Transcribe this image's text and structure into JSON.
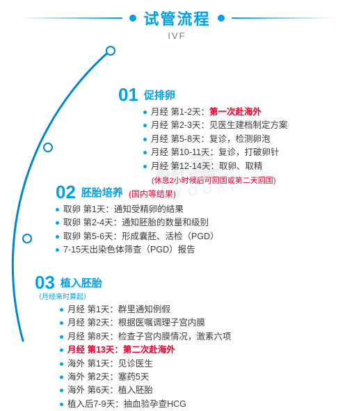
{
  "colors": {
    "accent": "#00a0e9",
    "text": "#3a3a3a",
    "highlight": "#e6002d",
    "muted": "#7a7a7a",
    "arc": "#0086d1",
    "watermark": "#e8e8e8"
  },
  "header": {
    "title": "试管流程",
    "subtitle": "IVF"
  },
  "watermark": {
    "main": "柚喜",
    "sub": "YOUXI"
  },
  "sections": [
    {
      "num": "01",
      "label": "促排卵",
      "note": "",
      "sub": "",
      "tail": "(休息2小时候后可回国或第二天回国)",
      "tail_color": "highlight",
      "items": [
        {
          "parts": [
            {
              "t": "月经 第1-2天：",
              "c": "text"
            },
            {
              "t": "第一次赴海外",
              "c": "highlight"
            }
          ]
        },
        {
          "parts": [
            {
              "t": "月经 第2-3天：见医生建档制定方案",
              "c": "text"
            }
          ]
        },
        {
          "parts": [
            {
              "t": "月经 第5-8天：复诊，检测卵泡",
              "c": "text"
            }
          ]
        },
        {
          "parts": [
            {
              "t": "月经 第10-11天：复诊，打破卵针",
              "c": "text"
            }
          ]
        },
        {
          "parts": [
            {
              "t": "月经 第12-14天：取卵、取精",
              "c": "text"
            }
          ]
        }
      ]
    },
    {
      "num": "02",
      "label": "胚胎培养",
      "note": "(国内等结果)",
      "note_color": "highlight",
      "sub": "",
      "tail": "",
      "items": [
        {
          "parts": [
            {
              "t": "取卵 第1天：通知受精卵的结果",
              "c": "text"
            }
          ]
        },
        {
          "parts": [
            {
              "t": "取卵 第2-4天：通知胚胎的数量和级别",
              "c": "text"
            }
          ]
        },
        {
          "parts": [
            {
              "t": "取卵 第5-6天：形成囊胚、活检（PGD）",
              "c": "text"
            }
          ]
        },
        {
          "parts": [
            {
              "t": "7-15天出染色体筛查（PGD）报告",
              "c": "text"
            }
          ]
        }
      ]
    },
    {
      "num": "03",
      "label": "植入胚胎",
      "note": "",
      "sub": "（月经来时算起）",
      "tail": "",
      "items": [
        {
          "parts": [
            {
              "t": "月经 第1天：群里通知例假",
              "c": "text"
            }
          ]
        },
        {
          "parts": [
            {
              "t": "月经 第2天：根据医嘱调理子宫内膜",
              "c": "text"
            }
          ]
        },
        {
          "parts": [
            {
              "t": "月经 第8天：检查子宫内膜情况，激素六项",
              "c": "text"
            }
          ]
        },
        {
          "parts": [
            {
              "t": "月经 第13天：第二次赴海外",
              "c": "highlight"
            }
          ]
        },
        {
          "parts": [
            {
              "t": "海外 第1天：见诊医生",
              "c": "text"
            }
          ]
        },
        {
          "parts": [
            {
              "t": "海外 第2天：塞药5天",
              "c": "text"
            }
          ]
        },
        {
          "parts": [
            {
              "t": "海外 第6天：植入胚胎",
              "c": "text"
            }
          ]
        },
        {
          "parts": [
            {
              "t": "植入后7-9天：抽血验孕查HCG",
              "c": "text"
            }
          ]
        }
      ]
    }
  ],
  "arc": {
    "stroke_width": 3,
    "node_border": 2,
    "node_radius": 7
  }
}
